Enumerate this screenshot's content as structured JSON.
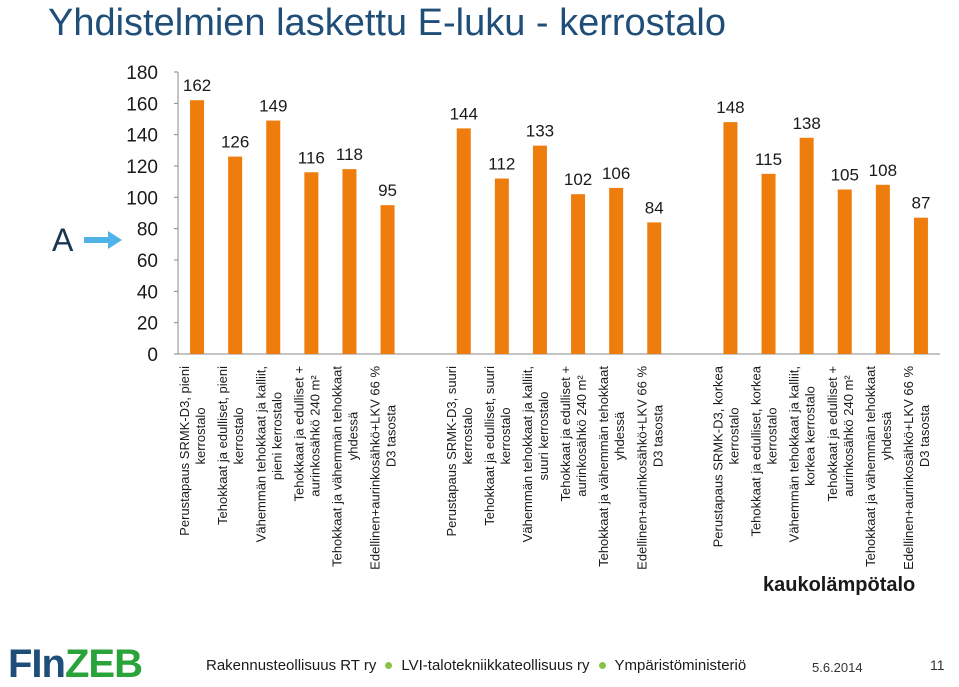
{
  "title": "Yhdistelmien laskettu E-luku - kerrostalo",
  "marker_label": "A",
  "kaukolampo_label": "kaukolämpötalo",
  "colors": {
    "bar": "#ee7d0e",
    "title": "#1f4e79",
    "arrow": "#4fb3e8"
  },
  "footer": {
    "brand_fi": "FIn",
    "brand_zeb": "ZEB",
    "orgs": [
      "Rakennusteollisuus RT ry",
      "LVI-talotekniikkateollisuus ry",
      "Ympäristöministeriö"
    ],
    "date": "5.6.2014",
    "page": "11"
  },
  "chart_data": {
    "type": "bar",
    "ylim": [
      0,
      180
    ],
    "yticks": [
      0,
      20,
      40,
      60,
      80,
      100,
      120,
      140,
      160,
      180
    ],
    "groups": [
      {
        "categories": [
          [
            "Perustapaus SRMK-D3, pieni",
            "kerrostalo"
          ],
          [
            "Tehokkaat ja edulliset, pieni",
            "kerrostalo"
          ],
          [
            "Vähemmän tehokkaat ja kalliit,",
            "pieni kerrostalo"
          ],
          [
            "Tehokkaat ja edulliset +",
            "aurinkosähkö 240 m²"
          ],
          [
            "Tehokkaat ja vähemmän tehokkaat",
            "yhdessä"
          ],
          [
            "Edellinen+aurinkosähkö+LKV 66 %",
            "D3 tasosta"
          ]
        ],
        "values": [
          162,
          126,
          149,
          116,
          118,
          95
        ]
      },
      {
        "categories": [
          [
            "Perustapaus SRMK-D3, suuri",
            "kerrostalo"
          ],
          [
            "Tehokkaat ja edulliset, suuri",
            "kerrostalo"
          ],
          [
            "Vähemmän tehokkaat ja kalliit,",
            "suuri kerrostalo"
          ],
          [
            "Tehokkaat ja edulliset +",
            "aurinkosähkö 240 m²"
          ],
          [
            "Tehokkaat ja vähemmän tehokkaat",
            "yhdessä"
          ],
          [
            "Edellinen+aurinkosähkö+LKV 66 %",
            "D3 tasosta"
          ]
        ],
        "values": [
          144,
          112,
          133,
          102,
          106,
          84
        ]
      },
      {
        "categories": [
          [
            "Perustapaus SRMK-D3, korkea",
            "kerrostalo"
          ],
          [
            "Tehokkaat ja edulliset, korkea",
            "kerrostalo"
          ],
          [
            "Vähemmän tehokkaat ja kalliit,",
            "korkea kerrostalo"
          ],
          [
            "Tehokkaat ja edulliset +",
            "aurinkosähkö 240 m²"
          ],
          [
            "Tehokkaat ja vähemmän tehokkaat",
            "yhdessä"
          ],
          [
            "Edellinen+aurinkosähkö+LKV 66 %",
            "D3 tasosta"
          ]
        ],
        "values": [
          148,
          115,
          138,
          105,
          108,
          87
        ]
      }
    ]
  }
}
